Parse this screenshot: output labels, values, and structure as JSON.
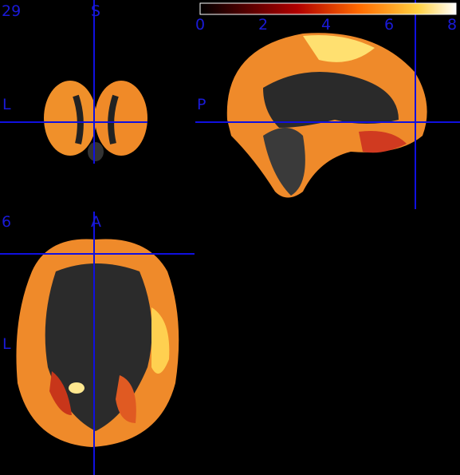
{
  "coronal": {
    "slice": "29",
    "top": "S",
    "left": "L"
  },
  "sagittal": {
    "left": "P"
  },
  "axial": {
    "slice": "6",
    "top": "A",
    "left": "L"
  },
  "colorbar": {
    "ticks": [
      0,
      2,
      4,
      6,
      8
    ]
  }
}
